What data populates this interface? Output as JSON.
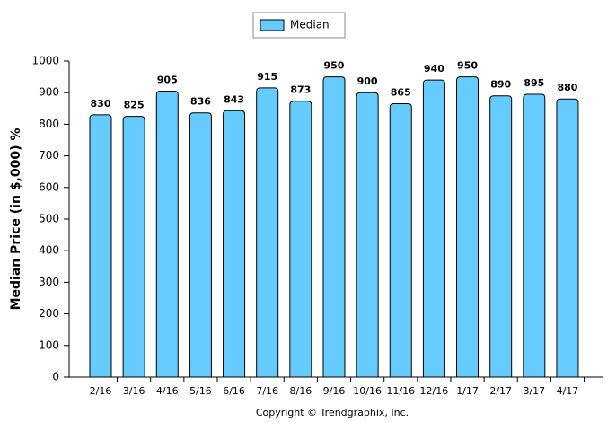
{
  "chart_data": {
    "type": "bar",
    "y_label": "Median Price (in $,000) %",
    "legend": "Median",
    "credit": "Copyright © Trendgraphix, Inc.",
    "categories": [
      "2/16",
      "3/16",
      "4/16",
      "5/16",
      "6/16",
      "7/16",
      "8/16",
      "9/16",
      "10/16",
      "11/16",
      "12/16",
      "1/17",
      "2/17",
      "3/17",
      "4/17"
    ],
    "values": [
      830,
      825,
      905,
      836,
      843,
      915,
      873,
      950,
      900,
      865,
      940,
      950,
      890,
      895,
      880
    ],
    "color": "#66ccff",
    "ylim": [
      0,
      1000
    ],
    "yticks": [
      0,
      100,
      200,
      300,
      400,
      500,
      600,
      700,
      800,
      900,
      1000
    ],
    "data_labels": true
  }
}
